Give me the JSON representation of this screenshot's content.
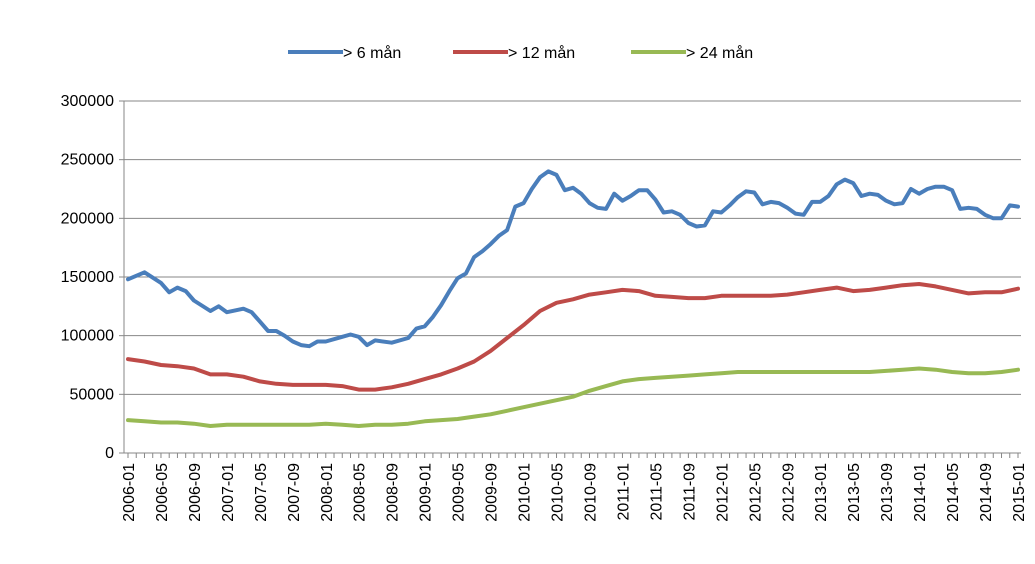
{
  "chart_data": {
    "type": "line",
    "title": "",
    "xlabel": "",
    "ylabel": "",
    "ylim": [
      0,
      300000
    ],
    "yticks": [
      0,
      50000,
      100000,
      150000,
      200000,
      250000,
      300000
    ],
    "xtick_labels": [
      "2006-01",
      "2006-05",
      "2006-09",
      "2007-01",
      "2007-05",
      "2007-09",
      "2008-01",
      "2008-05",
      "2008-09",
      "2009-01",
      "2009-05",
      "2009-09",
      "2010-01",
      "2010-05",
      "2010-09",
      "2011-01",
      "2011-05",
      "2011-09",
      "2012-01",
      "2012-05",
      "2012-09",
      "2013-01",
      "2013-05",
      "2013-09",
      "2014-01",
      "2014-05",
      "2014-09",
      "2015-01"
    ],
    "grid": "horizontal",
    "legend_placement": "top-center",
    "series": [
      {
        "name": "> 6 mån",
        "color": "#4a7ebb",
        "points": [
          [
            "2006-01",
            148000
          ],
          [
            "2006-03",
            154000
          ],
          [
            "2006-05",
            145000
          ],
          [
            "2006-06",
            137000
          ],
          [
            "2006-07",
            141000
          ],
          [
            "2006-08",
            138000
          ],
          [
            "2006-09",
            130000
          ],
          [
            "2006-11",
            121000
          ],
          [
            "2006-12",
            125000
          ],
          [
            "2007-01",
            120000
          ],
          [
            "2007-03",
            123000
          ],
          [
            "2007-04",
            120000
          ],
          [
            "2007-05",
            112000
          ],
          [
            "2007-06",
            104000
          ],
          [
            "2007-07",
            104000
          ],
          [
            "2007-08",
            100000
          ],
          [
            "2007-09",
            95000
          ],
          [
            "2007-10",
            92000
          ],
          [
            "2007-11",
            91000
          ],
          [
            "2007-12",
            95000
          ],
          [
            "2008-01",
            95000
          ],
          [
            "2008-03",
            99000
          ],
          [
            "2008-04",
            101000
          ],
          [
            "2008-05",
            99000
          ],
          [
            "2008-06",
            92000
          ],
          [
            "2008-07",
            96000
          ],
          [
            "2008-09",
            94000
          ],
          [
            "2008-11",
            98000
          ],
          [
            "2008-12",
            106000
          ],
          [
            "2009-01",
            108000
          ],
          [
            "2009-02",
            116000
          ],
          [
            "2009-03",
            126000
          ],
          [
            "2009-04",
            138000
          ],
          [
            "2009-05",
            149000
          ],
          [
            "2009-06",
            153000
          ],
          [
            "2009-07",
            167000
          ],
          [
            "2009-08",
            172000
          ],
          [
            "2009-09",
            178000
          ],
          [
            "2009-10",
            185000
          ],
          [
            "2009-11",
            190000
          ],
          [
            "2009-12",
            210000
          ],
          [
            "2010-01",
            213000
          ],
          [
            "2010-02",
            225000
          ],
          [
            "2010-03",
            235000
          ],
          [
            "2010-04",
            240000
          ],
          [
            "2010-05",
            237000
          ],
          [
            "2010-06",
            224000
          ],
          [
            "2010-07",
            226000
          ],
          [
            "2010-08",
            221000
          ],
          [
            "2010-09",
            213000
          ],
          [
            "2010-10",
            209000
          ],
          [
            "2010-11",
            208000
          ],
          [
            "2010-12",
            221000
          ],
          [
            "2011-01",
            215000
          ],
          [
            "2011-02",
            219000
          ],
          [
            "2011-03",
            224000
          ],
          [
            "2011-04",
            224000
          ],
          [
            "2011-05",
            216000
          ],
          [
            "2011-06",
            205000
          ],
          [
            "2011-07",
            206000
          ],
          [
            "2011-08",
            203000
          ],
          [
            "2011-09",
            196000
          ],
          [
            "2011-10",
            193000
          ],
          [
            "2011-11",
            194000
          ],
          [
            "2011-12",
            206000
          ],
          [
            "2012-01",
            205000
          ],
          [
            "2012-02",
            211000
          ],
          [
            "2012-03",
            218000
          ],
          [
            "2012-04",
            223000
          ],
          [
            "2012-05",
            222000
          ],
          [
            "2012-06",
            212000
          ],
          [
            "2012-07",
            214000
          ],
          [
            "2012-08",
            213000
          ],
          [
            "2012-09",
            209000
          ],
          [
            "2012-10",
            204000
          ],
          [
            "2012-11",
            203000
          ],
          [
            "2012-12",
            214000
          ],
          [
            "2013-01",
            214000
          ],
          [
            "2013-02",
            219000
          ],
          [
            "2013-03",
            229000
          ],
          [
            "2013-04",
            233000
          ],
          [
            "2013-05",
            230000
          ],
          [
            "2013-06",
            219000
          ],
          [
            "2013-07",
            221000
          ],
          [
            "2013-08",
            220000
          ],
          [
            "2013-09",
            215000
          ],
          [
            "2013-10",
            212000
          ],
          [
            "2013-11",
            213000
          ],
          [
            "2013-12",
            225000
          ],
          [
            "2014-01",
            221000
          ],
          [
            "2014-02",
            225000
          ],
          [
            "2014-03",
            227000
          ],
          [
            "2014-04",
            227000
          ],
          [
            "2014-05",
            224000
          ],
          [
            "2014-06",
            208000
          ],
          [
            "2014-07",
            209000
          ],
          [
            "2014-08",
            208000
          ],
          [
            "2014-09",
            203000
          ],
          [
            "2014-10",
            200000
          ],
          [
            "2014-11",
            200000
          ],
          [
            "2014-12",
            211000
          ],
          [
            "2015-01",
            210000
          ]
        ]
      },
      {
        "name": "> 12 mån",
        "color": "#be4b48",
        "points": [
          [
            "2006-01",
            80000
          ],
          [
            "2006-03",
            78000
          ],
          [
            "2006-05",
            75000
          ],
          [
            "2006-07",
            74000
          ],
          [
            "2006-09",
            72000
          ],
          [
            "2006-11",
            67000
          ],
          [
            "2007-01",
            67000
          ],
          [
            "2007-03",
            65000
          ],
          [
            "2007-05",
            61000
          ],
          [
            "2007-07",
            59000
          ],
          [
            "2007-09",
            58000
          ],
          [
            "2007-11",
            58000
          ],
          [
            "2008-01",
            58000
          ],
          [
            "2008-03",
            57000
          ],
          [
            "2008-05",
            54000
          ],
          [
            "2008-07",
            54000
          ],
          [
            "2008-09",
            56000
          ],
          [
            "2008-11",
            59000
          ],
          [
            "2009-01",
            63000
          ],
          [
            "2009-03",
            67000
          ],
          [
            "2009-05",
            72000
          ],
          [
            "2009-07",
            78000
          ],
          [
            "2009-09",
            87000
          ],
          [
            "2009-11",
            98000
          ],
          [
            "2010-01",
            109000
          ],
          [
            "2010-03",
            121000
          ],
          [
            "2010-05",
            128000
          ],
          [
            "2010-07",
            131000
          ],
          [
            "2010-09",
            135000
          ],
          [
            "2010-11",
            137000
          ],
          [
            "2011-01",
            139000
          ],
          [
            "2011-03",
            138000
          ],
          [
            "2011-05",
            134000
          ],
          [
            "2011-07",
            133000
          ],
          [
            "2011-09",
            132000
          ],
          [
            "2011-11",
            132000
          ],
          [
            "2012-01",
            134000
          ],
          [
            "2012-03",
            134000
          ],
          [
            "2012-05",
            134000
          ],
          [
            "2012-07",
            134000
          ],
          [
            "2012-09",
            135000
          ],
          [
            "2012-11",
            137000
          ],
          [
            "2013-01",
            139000
          ],
          [
            "2013-03",
            141000
          ],
          [
            "2013-05",
            138000
          ],
          [
            "2013-07",
            139000
          ],
          [
            "2013-09",
            141000
          ],
          [
            "2013-11",
            143000
          ],
          [
            "2014-01",
            144000
          ],
          [
            "2014-03",
            142000
          ],
          [
            "2014-05",
            139000
          ],
          [
            "2014-07",
            136000
          ],
          [
            "2014-09",
            137000
          ],
          [
            "2014-11",
            137000
          ],
          [
            "2015-01",
            140000
          ]
        ]
      },
      {
        "name": "> 24 mån",
        "color": "#98b954",
        "points": [
          [
            "2006-01",
            28000
          ],
          [
            "2006-03",
            27000
          ],
          [
            "2006-05",
            26000
          ],
          [
            "2006-07",
            26000
          ],
          [
            "2006-09",
            25000
          ],
          [
            "2006-11",
            23000
          ],
          [
            "2007-01",
            24000
          ],
          [
            "2007-03",
            24000
          ],
          [
            "2007-05",
            24000
          ],
          [
            "2007-07",
            24000
          ],
          [
            "2007-09",
            24000
          ],
          [
            "2007-11",
            24000
          ],
          [
            "2008-01",
            25000
          ],
          [
            "2008-03",
            24000
          ],
          [
            "2008-05",
            23000
          ],
          [
            "2008-07",
            24000
          ],
          [
            "2008-09",
            24000
          ],
          [
            "2008-11",
            25000
          ],
          [
            "2009-01",
            27000
          ],
          [
            "2009-03",
            28000
          ],
          [
            "2009-05",
            29000
          ],
          [
            "2009-07",
            31000
          ],
          [
            "2009-09",
            33000
          ],
          [
            "2009-11",
            36000
          ],
          [
            "2010-01",
            39000
          ],
          [
            "2010-03",
            42000
          ],
          [
            "2010-05",
            45000
          ],
          [
            "2010-07",
            48000
          ],
          [
            "2010-09",
            53000
          ],
          [
            "2010-11",
            57000
          ],
          [
            "2011-01",
            61000
          ],
          [
            "2011-03",
            63000
          ],
          [
            "2011-05",
            64000
          ],
          [
            "2011-07",
            65000
          ],
          [
            "2011-09",
            66000
          ],
          [
            "2011-11",
            67000
          ],
          [
            "2012-01",
            68000
          ],
          [
            "2012-03",
            69000
          ],
          [
            "2012-05",
            69000
          ],
          [
            "2012-07",
            69000
          ],
          [
            "2012-09",
            69000
          ],
          [
            "2012-11",
            69000
          ],
          [
            "2013-01",
            69000
          ],
          [
            "2013-03",
            69000
          ],
          [
            "2013-05",
            69000
          ],
          [
            "2013-07",
            69000
          ],
          [
            "2013-09",
            70000
          ],
          [
            "2013-11",
            71000
          ],
          [
            "2014-01",
            72000
          ],
          [
            "2014-03",
            71000
          ],
          [
            "2014-05",
            69000
          ],
          [
            "2014-07",
            68000
          ],
          [
            "2014-09",
            68000
          ],
          [
            "2014-11",
            69000
          ],
          [
            "2015-01",
            71000
          ]
        ]
      }
    ]
  }
}
